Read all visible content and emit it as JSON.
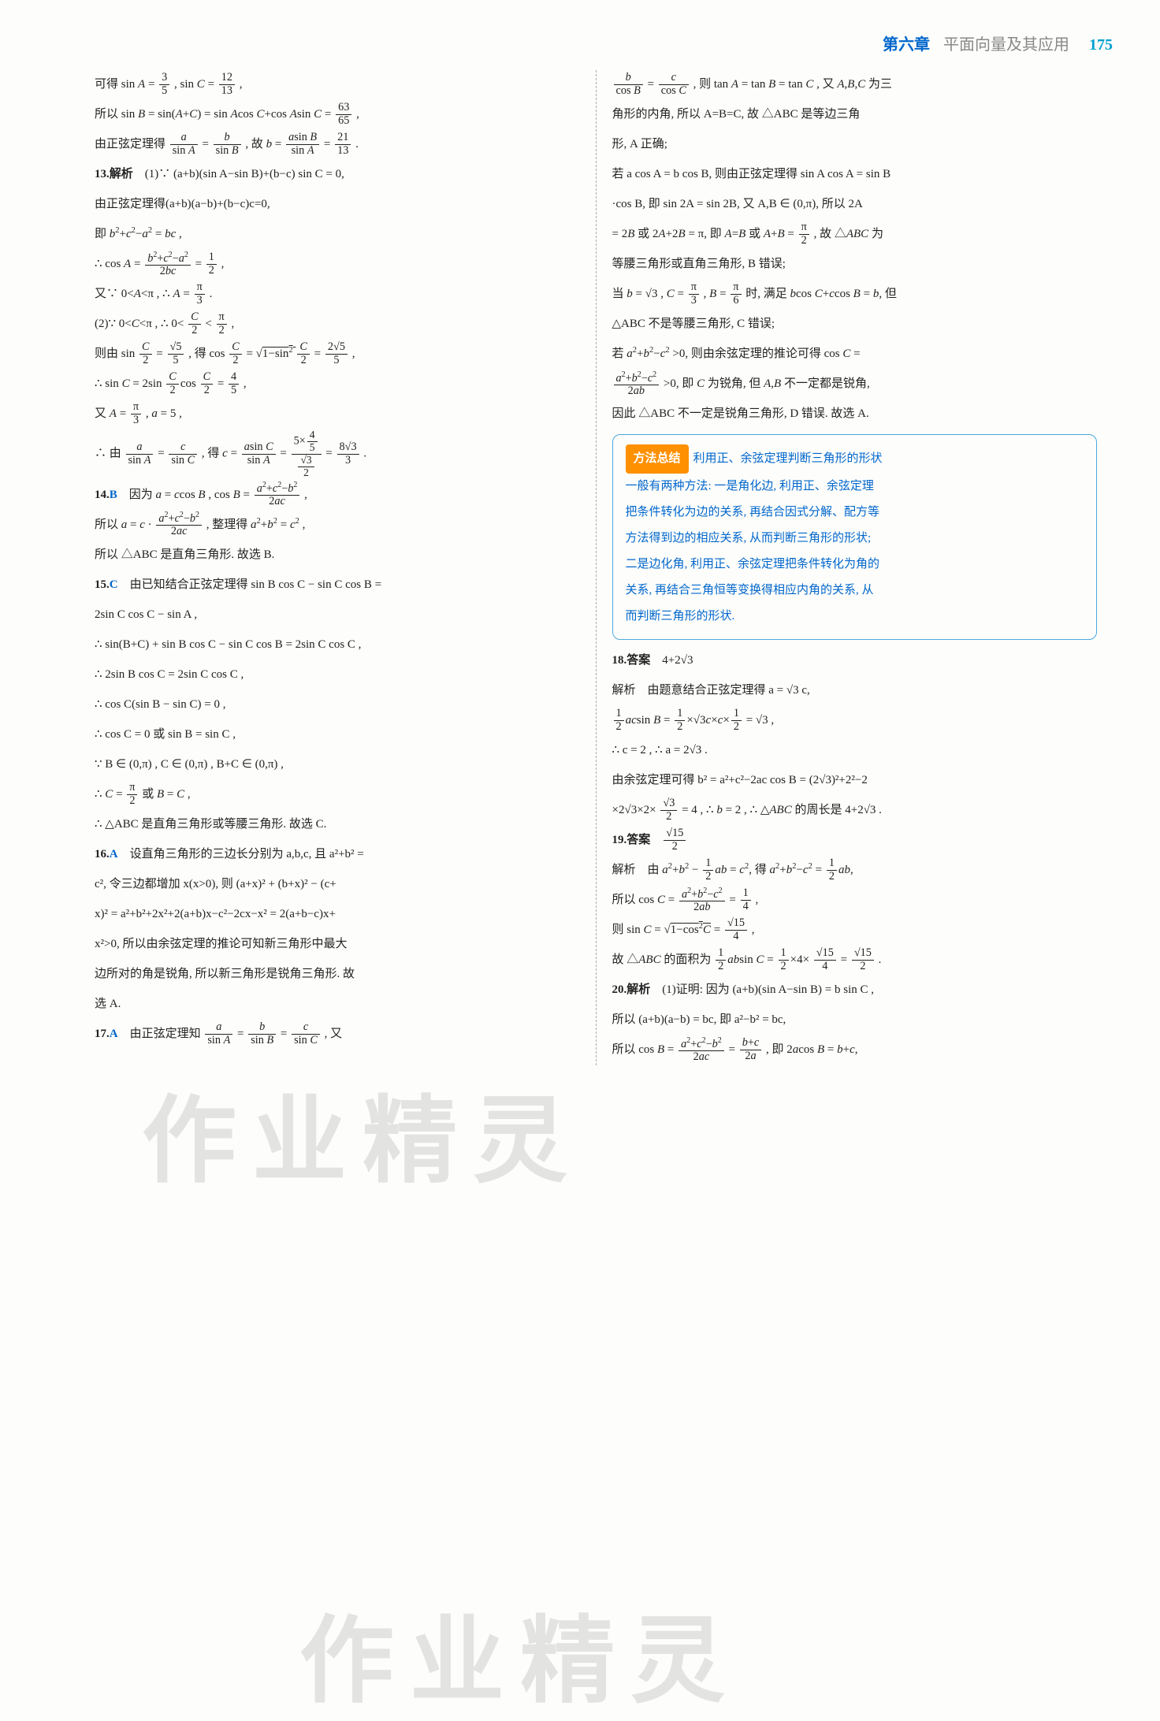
{
  "header": {
    "chapter": "第六章",
    "subtitle": "平面向量及其应用",
    "pagenum": "175"
  },
  "left": {
    "l1": "可得 sin A = 3/5 , sin C = 12/13 ,",
    "l2": "所以 sin B = sin(A+C) = sin A cos C + cos A sin C = 63/65 ,",
    "l3": "由正弦定理得 a/sin A = b/sin B , 故 b = a sin B / sin A = 21/13 .",
    "q13_num": "13.解析",
    "l4": "(1)∵ (a+b)(sin A−sin B)+(b−c) sin C = 0,",
    "l5": "由正弦定理得(a+b)(a−b)+(b−c)c=0,",
    "l6": "即 b²+c²−a² = bc ,",
    "l7": "∴ cos A = (b²+c²−a²)/(2bc) = 1/2 ,",
    "l8": "又∵ 0<A<π , ∴ A = π/3 .",
    "l9": "(2)∵ 0<C<π , ∴ 0< C/2 < π/2 ,",
    "l10": "则由 sin C/2 = √5/5 , 得 cos C/2 = √(1−sin² C/2) = 2√5/5 ,",
    "l11": "∴ sin C = 2sin(C/2)cos(C/2) = 4/5 ,",
    "l12": "又 A = π/3 , a = 5 ,",
    "l13": "∴ 由 a/sin A = c/sin C , 得 c = a sin C / sin A = (5×4/5)/(√3/2) = 8√3/3 .",
    "q14_num": "14.",
    "q14_ans": "B",
    "l14": "因为 a = c cos B , cos B = (a²+c²−b²)/(2ac) ,",
    "l15": "所以 a = c · (a²+c²−b²)/(2ac) , 整理得 a²+b² = c² ,",
    "l16": "所以 △ABC 是直角三角形. 故选 B.",
    "q15_num": "15.",
    "q15_ans": "C",
    "l17": "由已知结合正弦定理得 sin B cos C − sin C cos B =",
    "l18": "2sin C cos C − sin A ,",
    "l19": "∴ sin(B+C) + sin B cos C − sin C cos B = 2sin C cos C ,",
    "l20": "∴ 2sin B cos C = 2sin C cos C ,",
    "l21": "∴ cos C(sin B − sin C) = 0 ,",
    "l22": "∴ cos C = 0 或 sin B = sin C ,",
    "l23": "∵ B ∈ (0,π) , C ∈ (0,π) , B+C ∈ (0,π) ,",
    "l24": "∴ C = π/2 或 B = C ,",
    "l25": "∴ △ABC 是直角三角形或等腰三角形. 故选 C.",
    "q16_num": "16.",
    "q16_ans": "A",
    "l26": "设直角三角形的三边长分别为 a,b,c, 且 a²+b² =",
    "l27": "c², 令三边都增加 x(x>0), 则 (a+x)² + (b+x)² − (c+",
    "l28": "x)² = a²+b²+2x²+2(a+b)x−c²−2cx−x² = 2(a+b−c)x+",
    "l29": "x²>0, 所以由余弦定理的推论可知新三角形中最大",
    "l30": "边所对的角是锐角, 所以新三角形是锐角三角形. 故",
    "l31": "选 A.",
    "q17_num": "17.",
    "q17_ans": "A",
    "l32": "由正弦定理知 a/sin A = b/sin B = c/sin C , 又"
  },
  "right": {
    "r1": "b/cos B = c/cos C , 则 tan A = tan B = tan C , 又 A,B,C 为三",
    "r2": "角形的内角, 所以 A=B=C, 故 △ABC 是等边三角",
    "r3": "形, A 正确;",
    "r4": "若 a cos A = b cos B, 则由正弦定理得 sin A cos A = sin B",
    "r5": "·cos B, 即 sin 2A = sin 2B, 又 A,B ∈ (0,π), 所以 2A",
    "r6": "= 2B 或 2A+2B = π, 即 A=B 或 A+B = π/2 , 故 △ABC 为",
    "r7": "等腰三角形或直角三角形, B 错误;",
    "r8": "当 b = √3 , C = π/3 , B = π/6 时, 满足 b cos C + c cos B = b, 但",
    "r9": "△ABC 不是等腰三角形, C 错误;",
    "r10": "若 a²+b²−c² >0, 则由余弦定理的推论可得 cos C =",
    "r11": "(a²+b²−c²)/(2ab) >0, 即 C 为锐角, 但 A,B 不一定都是锐角,",
    "r12": "因此 △ABC 不一定是锐角三角形, D 错误. 故选 A.",
    "method_tag": "方法总结",
    "m1": "利用正、余弦定理判断三角形的形状",
    "m2": "一般有两种方法: 一是角化边, 利用正、余弦定理",
    "m3": "把条件转化为边的关系, 再结合因式分解、配方等",
    "m4": "方法得到边的相应关系, 从而判断三角形的形状;",
    "m5": "二是边化角, 利用正、余弦定理把条件转化为角的",
    "m6": "关系, 再结合三角恒等变换得相应内角的关系, 从",
    "m7": "而判断三角形的形状.",
    "q18_num": "18.答案",
    "q18_ans": "4+2√3",
    "r13": "解析　由题意结合正弦定理得 a = √3 c,",
    "r14": "1/2 ac sin B = 1/2 × √3 c × c × 1/2 = √3 ,",
    "r15": "∴ c = 2 , ∴ a = 2√3 .",
    "r16": "由余弦定理可得 b² = a²+c²−2ac cos B = (2√3)²+2²−2",
    "r17": "×2√3×2× √3/2 = 4 , ∴ b = 2 , ∴ △ABC 的周长是 4+2√3 .",
    "q19_num": "19.答案",
    "q19_ans": "√15/2",
    "r18": "解析　由 a²+b² − 1/2 ab = c², 得 a²+b²−c² = 1/2 ab,",
    "r19": "所以 cos C = (a²+b²−c²)/(2ab) = 1/4 ,",
    "r20": "则 sin C = √(1−cos²C) = √15/4 ,",
    "r21": "故 △ABC 的面积为 1/2 ab sin C = 1/2 ×4× √15/4 = √15/2 .",
    "q20_num": "20.解析",
    "r22": "(1)证明: 因为 (a+b)(sin A−sin B) = b sin C ,",
    "r23": "所以 (a+b)(a−b) = bc, 即 a²−b² = bc,",
    "r24": "所以 cos B = (a²+c²−b²)/(2ac) = (b+c)/(2a) , 即 2a cos B = b+c,"
  },
  "watermark": "作业精灵"
}
